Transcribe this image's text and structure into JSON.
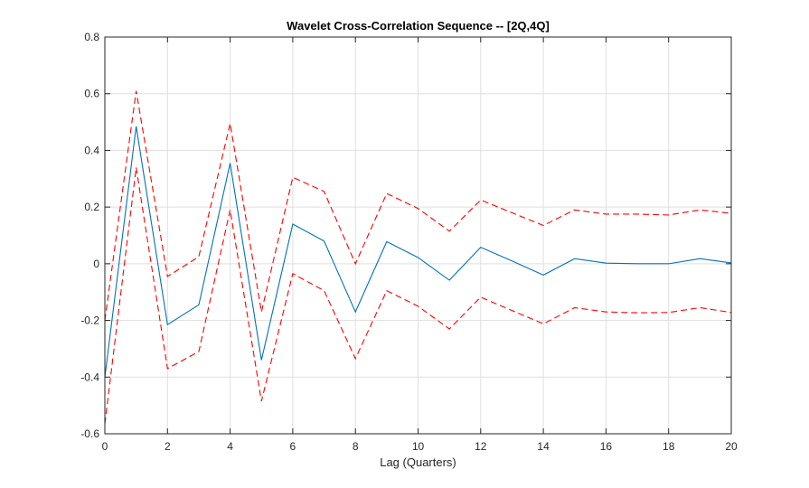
{
  "chart_data": {
    "type": "line",
    "title": "Wavelet Cross-Correlation Sequence -- [2Q,4Q]",
    "xlabel": "Lag (Quarters)",
    "ylabel": "",
    "xlim": [
      0,
      20
    ],
    "ylim": [
      -0.6,
      0.8
    ],
    "xticks": [
      0,
      2,
      4,
      6,
      8,
      10,
      12,
      14,
      16,
      18,
      20
    ],
    "yticks": [
      -0.6,
      -0.4,
      -0.2,
      0,
      0.2,
      0.4,
      0.6,
      0.8
    ],
    "xtick_labels": [
      "0",
      "2",
      "4",
      "6",
      "8",
      "10",
      "12",
      "14",
      "16",
      "18",
      "20"
    ],
    "ytick_labels": [
      "-0.6",
      "-0.4",
      "-0.2",
      "0",
      "0.2",
      "0.4",
      "0.6",
      "0.8"
    ],
    "grid": true,
    "x": [
      0,
      1,
      2,
      3,
      4,
      5,
      6,
      7,
      8,
      9,
      10,
      11,
      12,
      13,
      14,
      15,
      16,
      17,
      18,
      19,
      20
    ],
    "series": [
      {
        "color": "#0072bd",
        "style": "solid",
        "values": [
          -0.4,
          0.485,
          -0.215,
          -0.145,
          0.355,
          -0.34,
          0.14,
          0.08,
          -0.17,
          0.078,
          0.022,
          -0.058,
          0.058,
          0.01,
          -0.04,
          0.018,
          0.002,
          0.0,
          0.0,
          0.018,
          0.003
        ]
      },
      {
        "color": "#ff0000",
        "style": "dashed",
        "values": [
          -0.2,
          0.61,
          -0.045,
          0.025,
          0.495,
          -0.17,
          0.305,
          0.255,
          0.0,
          0.248,
          0.195,
          0.115,
          0.225,
          0.18,
          0.135,
          0.19,
          0.175,
          0.175,
          0.172,
          0.19,
          0.178
        ]
      },
      {
        "color": "#ff0000",
        "style": "dashed",
        "values": [
          -0.565,
          0.34,
          -0.37,
          -0.31,
          0.19,
          -0.485,
          -0.035,
          -0.095,
          -0.335,
          -0.095,
          -0.15,
          -0.23,
          -0.118,
          -0.165,
          -0.212,
          -0.155,
          -0.17,
          -0.173,
          -0.172,
          -0.155,
          -0.172
        ]
      }
    ]
  }
}
